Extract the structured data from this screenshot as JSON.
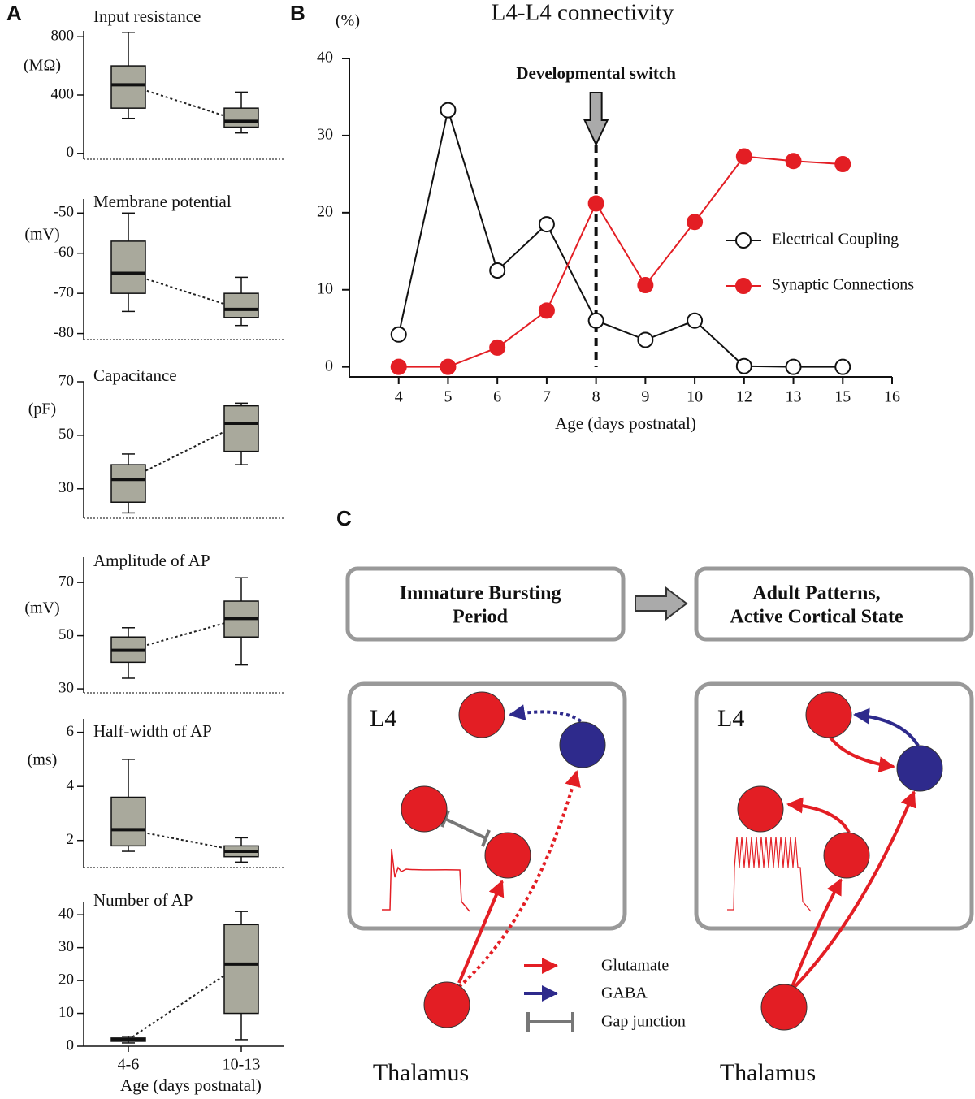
{
  "panels": [
    "A",
    "B",
    "C"
  ],
  "chart_data": [
    {
      "type": "box",
      "title": "Input resistance",
      "y_label": "(MΩ)",
      "categories": [
        null,
        null
      ],
      "ylim": [
        -40,
        840
      ],
      "yticks": [
        0,
        400,
        800
      ],
      "boxes": [
        {
          "min": 240,
          "q1": 310,
          "median": 470,
          "q3": 600,
          "max": 830
        },
        {
          "min": 140,
          "q1": 180,
          "median": 220,
          "q3": 310,
          "max": 420
        }
      ]
    },
    {
      "type": "box",
      "title": "Membrane potential",
      "y_label": "(mV)",
      "categories": [
        null,
        null
      ],
      "ylim": [
        -81.5,
        -46.5
      ],
      "yticks": [
        -50,
        -60,
        -70,
        -80
      ],
      "boxes": [
        {
          "min": -74.5,
          "q1": -70,
          "median": -65,
          "q3": -57,
          "max": -50
        },
        {
          "min": -78,
          "q1": -76,
          "median": -74,
          "q3": -70,
          "max": -66
        }
      ]
    },
    {
      "type": "box",
      "title": "Capacitance",
      "y_label": "(pF)",
      "categories": [
        null,
        null
      ],
      "ylim": [
        19,
        70
      ],
      "yticks": [
        30,
        50,
        70
      ],
      "boxes": [
        {
          "min": 21,
          "q1": 25,
          "median": 33.5,
          "q3": 39,
          "max": 43
        },
        {
          "min": 39,
          "q1": 44,
          "median": 54.5,
          "q3": 61,
          "max": 62
        }
      ]
    },
    {
      "type": "box",
      "title": "Amplitude of AP",
      "y_label": "(mV)",
      "categories": [
        null,
        null
      ],
      "ylim": [
        28.5,
        79.5
      ],
      "yticks": [
        30,
        50,
        70
      ],
      "boxes": [
        {
          "min": 34,
          "q1": 40,
          "median": 44.5,
          "q3": 49.5,
          "max": 53
        },
        {
          "min": 39,
          "q1": 49.5,
          "median": 56.5,
          "q3": 63,
          "max": 71.8
        }
      ]
    },
    {
      "type": "box",
      "title": "Half-width of AP",
      "y_label": "(ms)",
      "categories": [
        null,
        null
      ],
      "ylim": [
        1,
        6.5
      ],
      "yticks": [
        2,
        4,
        6
      ],
      "boxes": [
        {
          "min": 1.6,
          "q1": 1.8,
          "median": 2.4,
          "q3": 3.6,
          "max": 5
        },
        {
          "min": 1.2,
          "q1": 1.4,
          "median": 1.6,
          "q3": 1.8,
          "max": 2.1
        }
      ]
    },
    {
      "type": "box",
      "title": "Number of AP",
      "categories": [
        "4-6",
        "10-13"
      ],
      "xlabel": "Age (days postnatal)",
      "ylim": [
        0,
        44
      ],
      "yticks": [
        0,
        10,
        20,
        30,
        40
      ],
      "boxes": [
        {
          "min": 1,
          "q1": 1.5,
          "median": 2,
          "q3": 2.5,
          "max": 3
        },
        {
          "min": 2,
          "q1": 10,
          "median": 25,
          "q3": 37,
          "max": 41
        }
      ]
    },
    {
      "type": "line",
      "title": "L4-L4 connectivity",
      "y_label": "(%)",
      "xlabel": "Age (days postnatal)",
      "annotation": "Developmental switch",
      "categories": [
        null,
        "4",
        "5",
        "6",
        "7",
        "8",
        "9",
        "10",
        "12",
        "13",
        "15",
        "16"
      ],
      "ylim": [
        -1.3,
        40
      ],
      "yticks": [
        0,
        10,
        20,
        30,
        40
      ],
      "legend": "right",
      "series": [
        {
          "name": "Electrical Coupling",
          "color": "#111111",
          "filled": false,
          "values": [
            null,
            4.2,
            33.3,
            12.5,
            18.5,
            6,
            3.5,
            6,
            0.1,
            0,
            0,
            null
          ]
        },
        {
          "name": "Synaptic Connections",
          "color": "#e31e24",
          "filled": true,
          "values": [
            null,
            0,
            0,
            2.5,
            7.3,
            21.2,
            10.6,
            18.8,
            27.3,
            26.7,
            26.3,
            null
          ]
        }
      ]
    }
  ],
  "diagram": {
    "before": [
      "Immature Bursting",
      "Period"
    ],
    "after": [
      "Adult Patterns,",
      "Active Cortical State"
    ],
    "layer": [
      "L4",
      "L4"
    ],
    "source": [
      "Thalamus",
      "Thalamus"
    ],
    "legend": [
      "Glutamate",
      "GABA",
      "Gap junction"
    ]
  }
}
